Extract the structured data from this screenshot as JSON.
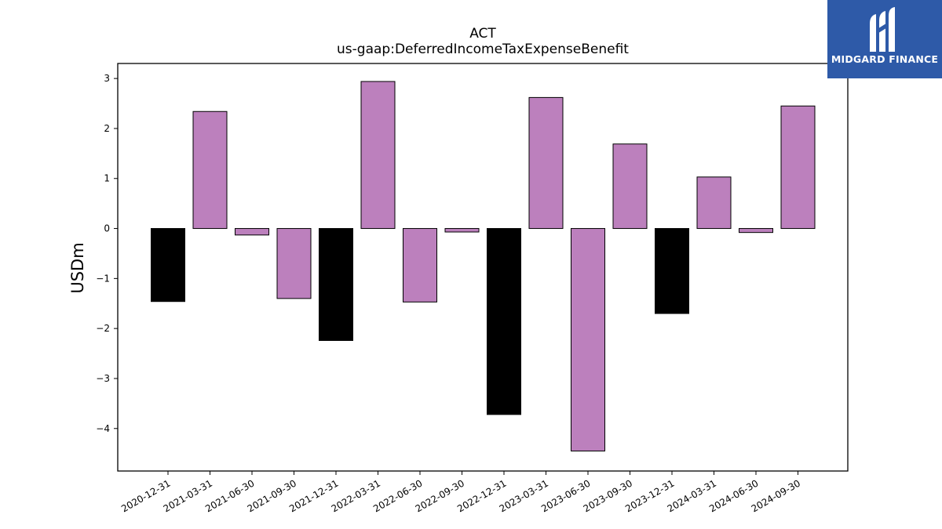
{
  "logo": {
    "text": "MIDGARD FINANCE",
    "background": "#2e5aa8",
    "icon": "midgard-m-logo-icon"
  },
  "chart_data": {
    "type": "bar",
    "title": "ACT",
    "subtitle": "us-gaap:DeferredIncomeTaxExpenseBenefit",
    "xlabel": "",
    "ylabel": "USDm",
    "ylim": [
      -4.85,
      3.3
    ],
    "yticks": [
      3,
      2,
      1,
      0,
      -1,
      -2,
      -3,
      -4
    ],
    "ytick_labels": [
      "3",
      "2",
      "1",
      "0",
      "−1",
      "−2",
      "−3",
      "−4"
    ],
    "grid": false,
    "categories": [
      "2020-12-31",
      "2021-03-31",
      "2021-06-30",
      "2021-09-30",
      "2021-12-31",
      "2022-03-31",
      "2022-06-30",
      "2022-09-30",
      "2022-12-31",
      "2023-03-31",
      "2023-06-30",
      "2023-09-30",
      "2023-12-31",
      "2024-03-31",
      "2024-06-30",
      "2024-09-30"
    ],
    "values": [
      -1.46,
      2.34,
      -0.13,
      -1.4,
      -2.24,
      2.94,
      -1.47,
      -0.07,
      -3.72,
      2.62,
      -4.45,
      1.69,
      -1.7,
      1.03,
      -0.08,
      2.45
    ],
    "bar_colors": [
      "#000000",
      "#bc80bd",
      "#bc80bd",
      "#bc80bd",
      "#000000",
      "#bc80bd",
      "#bc80bd",
      "#bc80bd",
      "#000000",
      "#bc80bd",
      "#bc80bd",
      "#bc80bd",
      "#000000",
      "#bc80bd",
      "#bc80bd",
      "#bc80bd"
    ]
  }
}
